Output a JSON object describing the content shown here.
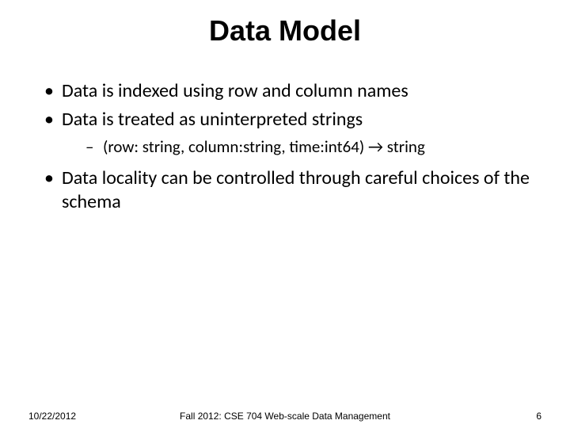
{
  "slide": {
    "title": "Data Model",
    "title_fontsize": 36,
    "title_color": "#000000",
    "background_color": "#ffffff",
    "body_font": "Calibri",
    "title_font": "Arial",
    "bullets": [
      {
        "text": "Data is indexed using row and column names",
        "fontsize": 24,
        "sub": []
      },
      {
        "text": "Data is treated as uninterpreted strings",
        "fontsize": 24,
        "sub": [
          {
            "text": "(row: string, column:string, time:int64) → string",
            "fontsize": 21
          }
        ]
      },
      {
        "text": "Data locality can be controlled through careful choices of the schema",
        "fontsize": 24,
        "sub": []
      }
    ],
    "footer": {
      "date": "10/22/2012",
      "center": "Fall 2012: CSE 704 Web-scale Data Management",
      "page": "6",
      "fontsize": 12,
      "color": "#000000"
    }
  }
}
